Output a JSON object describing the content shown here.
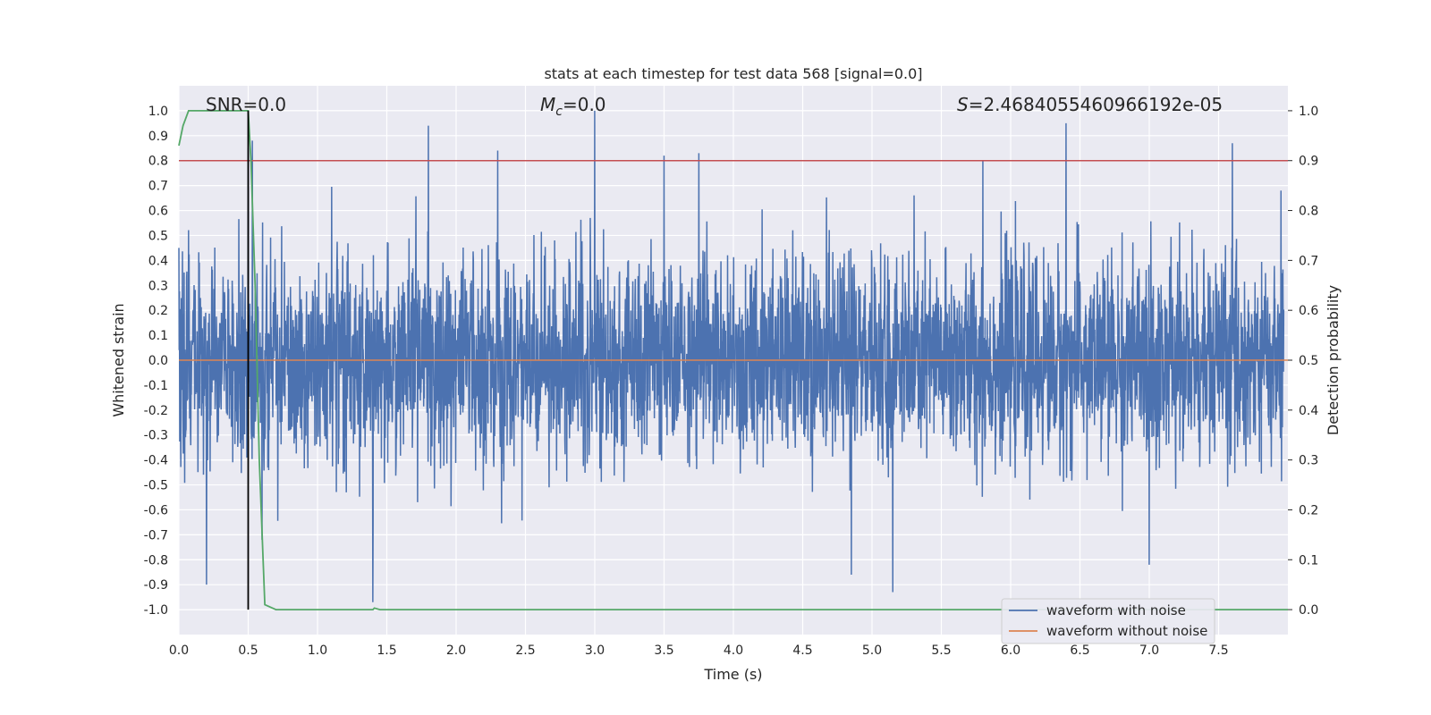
{
  "chart_data": {
    "type": "line",
    "title": "stats at each timestep for test data 568 [signal=0.0]",
    "xlabel": "Time (s)",
    "ylabel": "Whitened strain",
    "y2label": "Detection probability",
    "xlim": [
      0.0,
      8.0
    ],
    "ylim": [
      -1.1,
      1.1
    ],
    "y2lim": [
      -0.05,
      1.05
    ],
    "xticks": [
      "0.0",
      "0.5",
      "1.0",
      "1.5",
      "2.0",
      "2.5",
      "3.0",
      "3.5",
      "4.0",
      "4.5",
      "5.0",
      "5.5",
      "6.0",
      "6.5",
      "7.0",
      "7.5"
    ],
    "yticks": [
      "-1.0",
      "-0.9",
      "-0.8",
      "-0.7",
      "-0.6",
      "-0.5",
      "-0.4",
      "-0.3",
      "-0.2",
      "-0.1",
      "0.0",
      "0.1",
      "0.2",
      "0.3",
      "0.4",
      "0.5",
      "0.6",
      "0.7",
      "0.8",
      "0.9",
      "1.0"
    ],
    "y2ticks": [
      "0.0",
      "0.1",
      "0.2",
      "0.3",
      "0.4",
      "0.5",
      "0.6",
      "0.7",
      "0.8",
      "0.9",
      "1.0"
    ],
    "grid": true,
    "legend_position": "lower-right",
    "annotations": {
      "snr": "SNR=0.0",
      "mc_symbol": "M",
      "mc_sub": "c",
      "mc_value": "=0.0",
      "s_symbol": "S",
      "s_value": "=2.4684055460966192e-05"
    },
    "series": [
      {
        "name": "waveform with noise",
        "color": "#4c72b0",
        "description_points": {
          "x": [
            0.0,
            0.2,
            0.5,
            0.53,
            0.6,
            1.4,
            1.8,
            2.3,
            3.0,
            3.5,
            3.75,
            4.85,
            5.15,
            5.8,
            6.4,
            7.0,
            7.6,
            7.95
          ],
          "y": [
            0.45,
            -0.9,
            0.85,
            0.88,
            -0.72,
            -0.97,
            0.94,
            0.84,
            1.0,
            0.82,
            0.83,
            -0.86,
            -0.93,
            0.8,
            0.95,
            -0.82,
            0.87,
            0.68
          ]
        }
      },
      {
        "name": "waveform without noise",
        "color": "#dd8452",
        "x": [
          0.0,
          8.0
        ],
        "y": [
          0.0,
          0.0
        ]
      },
      {
        "name": "detection probability",
        "color": "#55a868",
        "axis": "right",
        "x": [
          0.0,
          0.03,
          0.07,
          0.15,
          0.5,
          0.52,
          0.55,
          0.58,
          0.62,
          0.7,
          1.0,
          1.4,
          1.41,
          1.45,
          8.0
        ],
        "y": [
          0.93,
          0.97,
          1.0,
          1.0,
          1.0,
          0.9,
          0.65,
          0.3,
          0.01,
          0.0,
          0.0,
          0.0,
          0.003,
          0.0,
          0.0
        ]
      },
      {
        "name": "threshold",
        "color": "#c44e52",
        "axis": "right",
        "x": [
          0.0,
          8.0
        ],
        "y": [
          0.9,
          0.9
        ]
      },
      {
        "name": "marker",
        "color": "#000000",
        "axis": "right",
        "x": [
          0.5,
          0.5
        ],
        "y": [
          0.0,
          1.0
        ]
      }
    ]
  }
}
